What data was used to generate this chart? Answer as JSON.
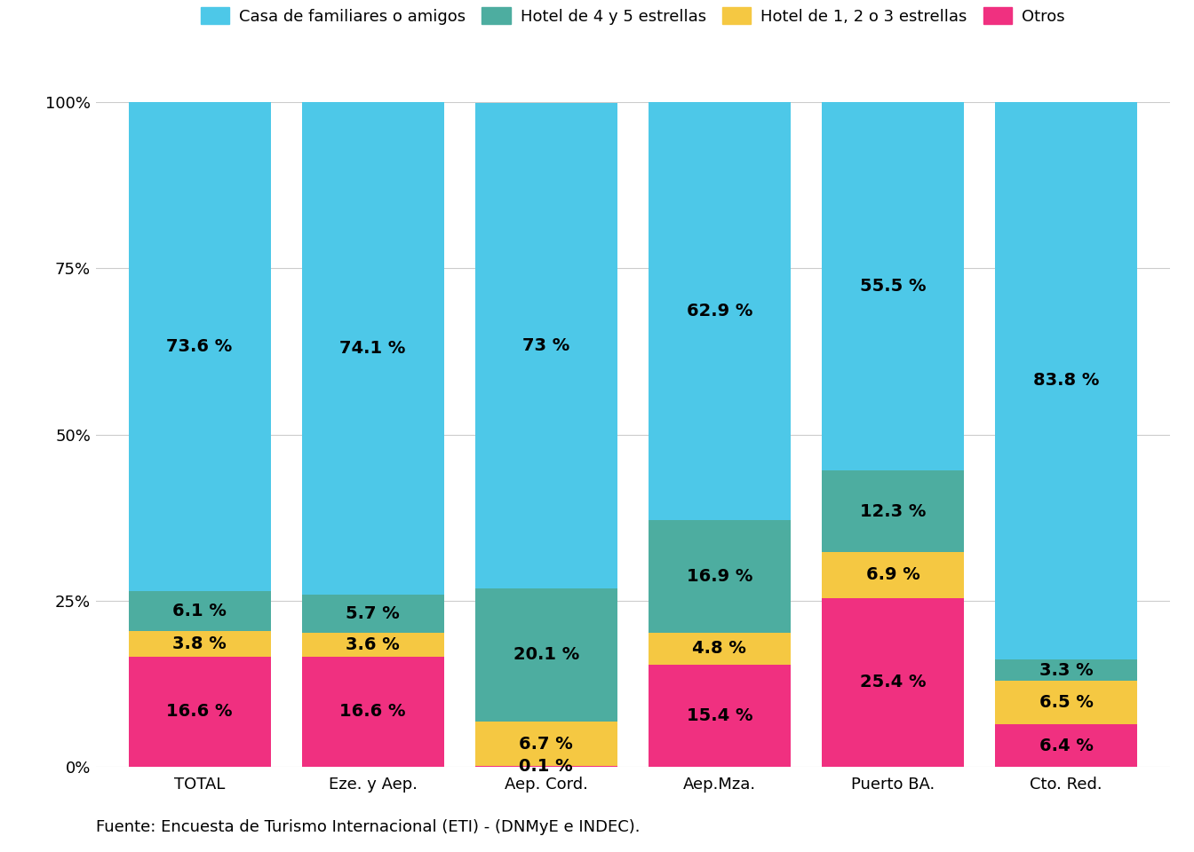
{
  "categories": [
    "TOTAL",
    "Eze. y Aep.",
    "Aep. Cord.",
    "Aep.Mza.",
    "Puerto BA.",
    "Cto. Red."
  ],
  "series": {
    "Otros": [
      16.6,
      16.6,
      0.1,
      15.4,
      25.4,
      6.4
    ],
    "Hotel de 1, 2 o 3 estrellas": [
      3.8,
      3.6,
      6.7,
      4.8,
      6.9,
      6.5
    ],
    "Hotel de 4 y 5 estrellas": [
      6.1,
      5.7,
      20.1,
      16.9,
      12.3,
      3.3
    ],
    "Casa de familiares o amigos": [
      73.6,
      74.1,
      73.0,
      62.9,
      55.5,
      83.8
    ]
  },
  "series_order": [
    "Otros",
    "Hotel de 1, 2 o 3 estrellas",
    "Hotel de 4 y 5 estrellas",
    "Casa de familiares o amigos"
  ],
  "colors": {
    "Casa de familiares o amigos": "#4DC8E8",
    "Hotel de 4 y 5 estrellas": "#4DADA0",
    "Hotel de 1, 2 o 3 estrellas": "#F5C842",
    "Otros": "#F03080"
  },
  "legend_order": [
    "Casa de familiares o amigos",
    "Hotel de 4 y 5 estrellas",
    "Hotel de 1, 2 o 3 estrellas",
    "Otros"
  ],
  "labels": {
    "TOTAL": {
      "Casa de familiares o amigos": "73.6 %",
      "Hotel de 4 y 5 estrellas": "6.1 %",
      "Hotel de 1, 2 o 3 estrellas": "3.8 %",
      "Otros": "16.6 %"
    },
    "Eze. y Aep.": {
      "Casa de familiares o amigos": "74.1 %",
      "Hotel de 4 y 5 estrellas": "5.7 %",
      "Hotel de 1, 2 o 3 estrellas": "3.6 %",
      "Otros": "16.6 %"
    },
    "Aep. Cord.": {
      "Casa de familiares o amigos": "73 %",
      "Hotel de 4 y 5 estrellas": "20.1 %",
      "Hotel de 1, 2 o 3 estrellas": "6.7 %",
      "Otros": "0.1 %"
    },
    "Aep.Mza.": {
      "Casa de familiares o amigos": "62.9 %",
      "Hotel de 4 y 5 estrellas": "16.9 %",
      "Hotel de 1, 2 o 3 estrellas": "4.8 %",
      "Otros": "15.4 %"
    },
    "Puerto BA.": {
      "Casa de familiares o amigos": "55.5 %",
      "Hotel de 4 y 5 estrellas": "12.3 %",
      "Hotel de 1, 2 o 3 estrellas": "6.9 %",
      "Otros": "25.4 %"
    },
    "Cto. Red.": {
      "Casa de familiares o amigos": "83.8 %",
      "Hotel de 4 y 5 estrellas": "3.3 %",
      "Hotel de 1, 2 o 3 estrellas": "6.5 %",
      "Otros": "6.4 %"
    }
  },
  "yticks": [
    0,
    25,
    50,
    75,
    100
  ],
  "ytick_labels": [
    "0%",
    "25%",
    "50%",
    "75%",
    "100%"
  ],
  "footer": "Fuente: Encuesta de Turismo Internacional (ETI) - (DNMyE e INDEC).",
  "background_color": "#FFFFFF",
  "bar_width": 0.82,
  "label_fontsize": 14,
  "tick_fontsize": 13,
  "legend_fontsize": 13,
  "footer_fontsize": 13
}
